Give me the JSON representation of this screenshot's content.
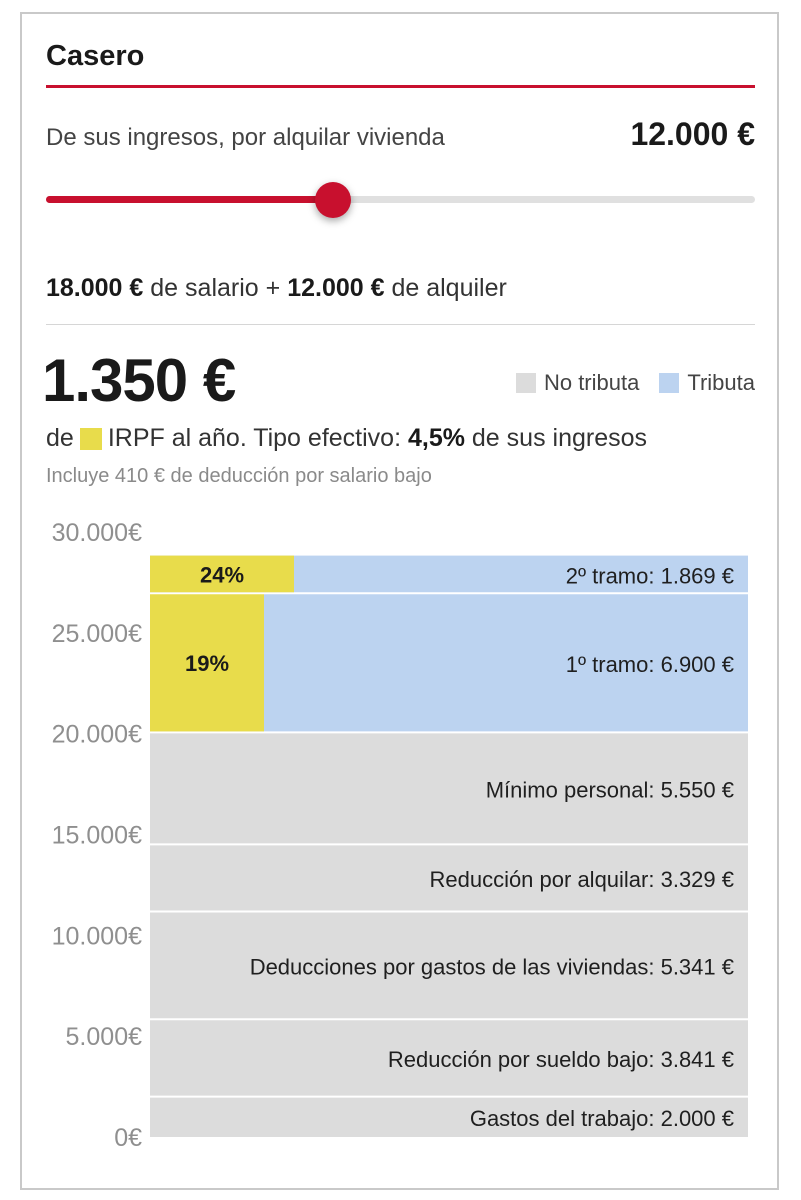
{
  "card": {
    "title": "Casero",
    "slider": {
      "label": "De sus ingresos, por alquilar vivienda",
      "value_label": "12.000 €",
      "fraction": 0.405
    },
    "income": {
      "salary_amount": "18.000 €",
      "salary_text": "de salario +",
      "rent_amount": "12.000 €",
      "rent_text": "de alquiler"
    },
    "total": "1.350 €",
    "legend": [
      {
        "label": "No tributa",
        "color": "#dcdcdc"
      },
      {
        "label": "Tributa",
        "color": "#bcd3f0"
      }
    ],
    "summary": {
      "prefix": "de",
      "irpf": "IRPF al año. Tipo efectivo:",
      "rate": "4,5%",
      "suffix": "de sus ingresos"
    },
    "note": "Incluye 410 € de deducción por salario bajo"
  },
  "chart_data": {
    "type": "bar",
    "orientation": "stacked-vertical",
    "ylim": [
      0,
      30000
    ],
    "yticks": [
      0,
      5000,
      10000,
      15000,
      20000,
      25000,
      30000
    ],
    "ytick_labels": [
      "0€",
      "5.000€",
      "10.000€",
      "15.000€",
      "20.000€",
      "25.000€",
      "30.000€"
    ],
    "colors": {
      "no_tributa": "#dcdcdc",
      "tributa": "#bcd3f0",
      "irpf": "#e8dc4b"
    },
    "segments": [
      {
        "label": "Gastos del trabajo: 2.000 €",
        "value": 2000,
        "category": "no_tributa"
      },
      {
        "label": "Reducción por sueldo bajo: 3.841 €",
        "value": 3841,
        "category": "no_tributa"
      },
      {
        "label": "Deducciones por gastos de las viviendas: 5.341 €",
        "value": 5341,
        "category": "no_tributa"
      },
      {
        "label": "Reducción por alquilar: 3.329 €",
        "value": 3329,
        "category": "no_tributa"
      },
      {
        "label": "Mínimo personal: 5.550 €",
        "value": 5550,
        "category": "no_tributa"
      },
      {
        "label": "1º tramo: 6.900 €",
        "value": 6900,
        "category": "tributa",
        "rate_label": "19%",
        "rate": 0.19
      },
      {
        "label": "2º tramo: 1.869 €",
        "value": 1869,
        "category": "tributa",
        "rate_label": "24%",
        "rate": 0.24
      }
    ]
  }
}
